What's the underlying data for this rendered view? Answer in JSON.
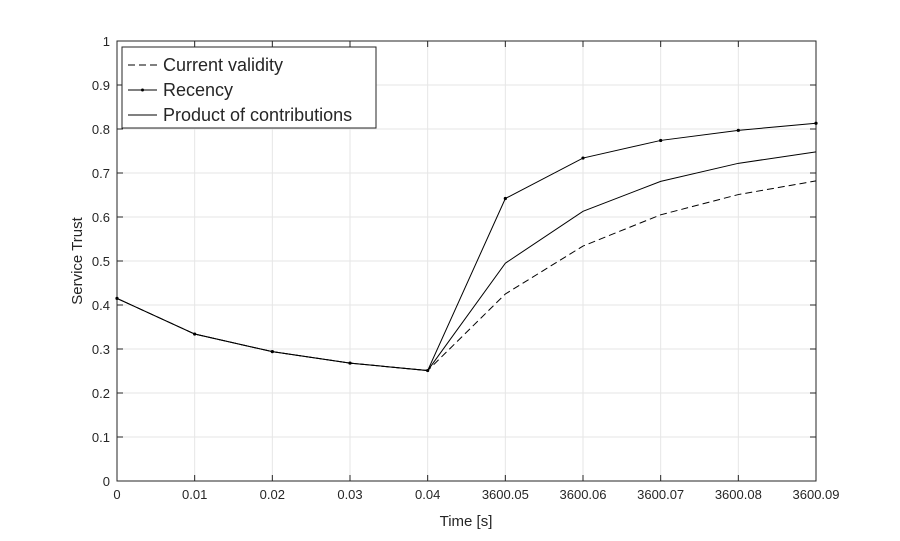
{
  "chart_data": {
    "type": "line",
    "xlabel": "Time [s]",
    "ylabel": "Service Trust",
    "categories": [
      "0",
      "0.01",
      "0.02",
      "0.03",
      "0.04",
      "3600.05",
      "3600.06",
      "3600.07",
      "3600.08",
      "3600.09"
    ],
    "yticks": [
      "0",
      "0.1",
      "0.2",
      "0.3",
      "0.4",
      "0.5",
      "0.6",
      "0.7",
      "0.8",
      "0.9",
      "1"
    ],
    "ylim": [
      0,
      1
    ],
    "grid": true,
    "legend_position": "top-left",
    "series": [
      {
        "name": "Current validity",
        "style": "dashed",
        "color": "#000000",
        "values": [
          0.415,
          0.334,
          0.294,
          0.268,
          0.251,
          0.425,
          0.534,
          0.605,
          0.651,
          0.682
        ]
      },
      {
        "name": "Recency",
        "style": "solid-dot",
        "color": "#000000",
        "values": [
          0.415,
          0.334,
          0.294,
          0.268,
          0.251,
          0.642,
          0.734,
          0.774,
          0.797,
          0.813
        ]
      },
      {
        "name": "Product of contributions",
        "style": "solid",
        "color": "#000000",
        "values": [
          0.415,
          0.334,
          0.294,
          0.268,
          0.251,
          0.495,
          0.613,
          0.681,
          0.722,
          0.748
        ]
      }
    ]
  }
}
